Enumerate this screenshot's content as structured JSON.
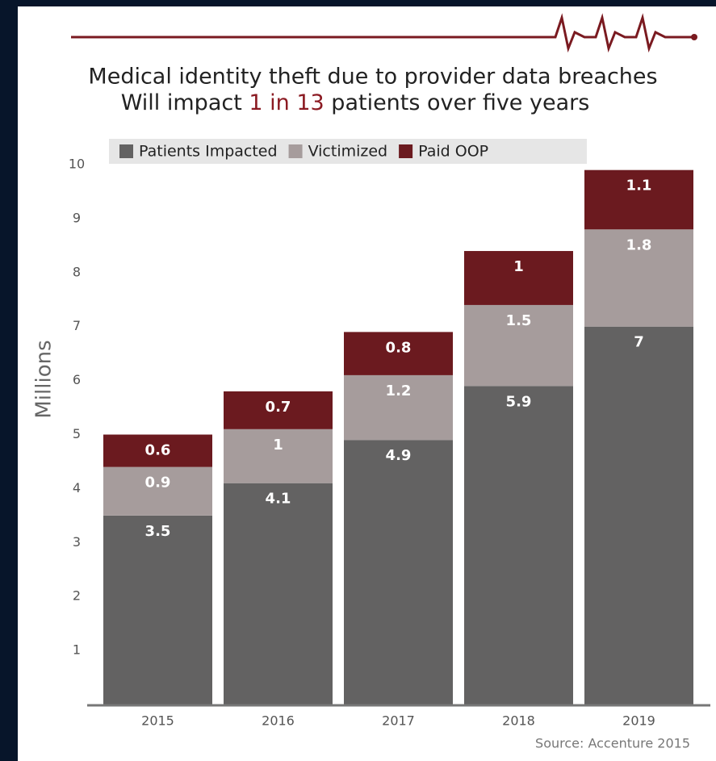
{
  "chart_data": {
    "type": "stacked_bar",
    "title": "Medical identity theft due to provider data breaches",
    "subtitle": [
      "Will impact ",
      "1 in 13",
      " patients over five years"
    ],
    "ylabel": "Millions",
    "source": "Source: Accenture 2015",
    "categories": [
      "2015",
      "2016",
      "2017",
      "2018",
      "2019"
    ],
    "series": [
      {
        "name": "Patients Impacted",
        "color": "#636262",
        "values": [
          3.5,
          4.1,
          4.9,
          5.9,
          7
        ]
      },
      {
        "name": "Victimized",
        "color": "#a69c9c",
        "values": [
          0.9,
          1,
          1.2,
          1.5,
          1.8
        ]
      },
      {
        "name": "Paid OOP",
        "color": "#6b1a1f",
        "values": [
          0.6,
          0.7,
          0.8,
          1,
          1.1
        ]
      }
    ],
    "ylim": [
      0,
      10
    ],
    "yticks": [
      1,
      2,
      3,
      4,
      5,
      6,
      7,
      8,
      9,
      10
    ],
    "legend": "top"
  }
}
